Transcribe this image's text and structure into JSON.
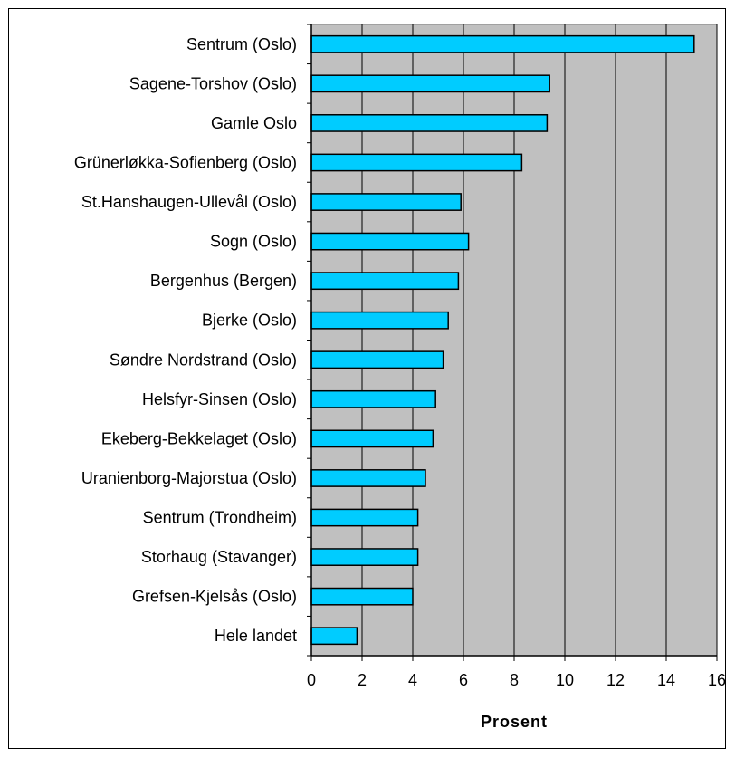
{
  "chart_data": {
    "type": "bar",
    "orientation": "horizontal",
    "categories": [
      "Sentrum (Oslo)",
      "Sagene-Torshov (Oslo)",
      "Gamle Oslo",
      "Grünerløkka-Sofienberg (Oslo)",
      "St.Hanshaugen-Ullevål (Oslo)",
      "Sogn (Oslo)",
      "Bergenhus (Bergen)",
      "Bjerke (Oslo)",
      "Søndre Nordstrand (Oslo)",
      "Helsfyr-Sinsen (Oslo)",
      "Ekeberg-Bekkelaget (Oslo)",
      "Uranienborg-Majorstua (Oslo)",
      "Sentrum (Trondheim)",
      "Storhaug (Stavanger)",
      "Grefsen-Kjelsås (Oslo)",
      "Hele landet"
    ],
    "values": [
      15.1,
      9.4,
      9.3,
      8.3,
      5.9,
      6.2,
      5.8,
      5.4,
      5.2,
      4.9,
      4.8,
      4.5,
      4.2,
      4.2,
      4.0,
      1.8
    ],
    "title": "",
    "xlabel": "Prosent",
    "ylabel": "",
    "xlim": [
      0,
      16
    ],
    "xticks": [
      "0",
      "2",
      "4",
      "6",
      "8",
      "10",
      "12",
      "14",
      "16"
    ],
    "grid": true,
    "plot_background": "#c0c0c0",
    "bar_color": "#00ccff",
    "bar_outline": "#000000",
    "legend": "none"
  }
}
